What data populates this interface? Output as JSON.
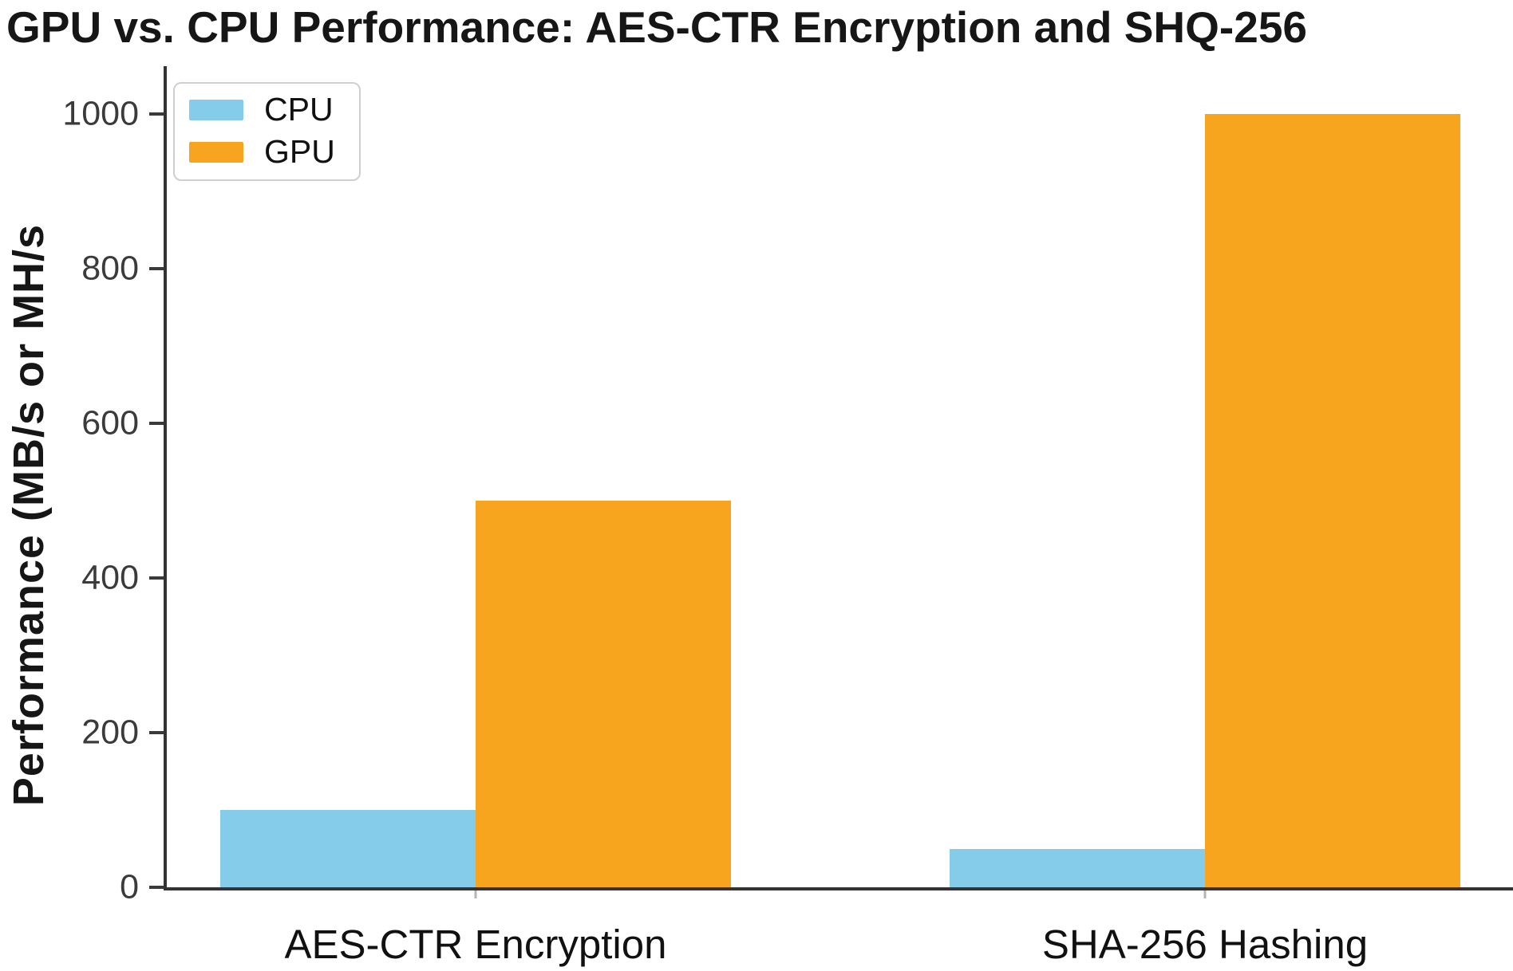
{
  "chart_data": {
    "type": "bar",
    "title": "GPU vs. CPU Performance: AES-CTR Encryption and SHQ-256",
    "categories": [
      "AES-CTR Encryption",
      "SHA-256 Hashing"
    ],
    "series": [
      {
        "name": "CPU",
        "color": "#85CBEA",
        "values": [
          100,
          50
        ]
      },
      {
        "name": "GPU",
        "color": "#F7A41E",
        "values": [
          500,
          1000
        ]
      }
    ],
    "xlabel": "",
    "ylabel": "Performance (MB/s or MH/s",
    "yticks": [
      0,
      200,
      400,
      600,
      800,
      1000
    ],
    "ylim": [
      0,
      1062
    ],
    "grid": false,
    "legend_position": "upper left",
    "axis_color": "#333333",
    "tick_label_color": "#3b3b3b"
  }
}
